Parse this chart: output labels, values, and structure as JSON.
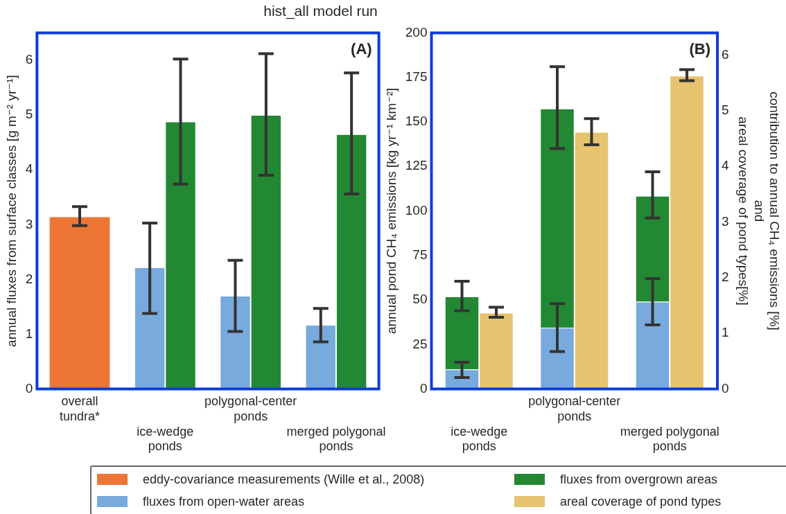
{
  "chart_data": [
    {
      "type": "bar",
      "title": "hist_all model run",
      "ylabel": "annual fluxes from surface classes [g m⁻² yr⁻¹]",
      "categories": [
        "overall tundra*",
        "ice-wedge ponds",
        "polygonal-center ponds",
        "merged polygonal ponds"
      ],
      "series": [
        {
          "name": "eddy-covariance measurements (Wille et al., 2008)",
          "color": "#ed7634",
          "values": [
            3.15,
            null,
            null,
            null
          ],
          "errors": [
            [
              2.98,
              3.33
            ],
            null,
            null,
            null
          ]
        },
        {
          "name": "fluxes from open-water areas",
          "color": "#79aadd",
          "values": [
            null,
            2.22,
            1.7,
            1.17
          ],
          "errors": [
            null,
            [
              1.38,
              3.03
            ],
            [
              1.05,
              2.35
            ],
            [
              0.86,
              1.47
            ]
          ]
        },
        {
          "name": "fluxes from overgrown areas",
          "color": "#238833",
          "values": [
            null,
            4.88,
            5.0,
            4.65
          ],
          "errors": [
            null,
            [
              3.74,
              6.02
            ],
            [
              3.9,
              6.12
            ],
            [
              3.56,
              5.77
            ]
          ]
        }
      ],
      "ylim": [
        0,
        6.5
      ],
      "yticks": [
        0,
        1,
        2,
        3,
        4,
        5,
        6
      ],
      "legend": "bottom",
      "annotations": [
        "(A)"
      ]
    },
    {
      "type": "bar",
      "ylabel": "annual pond CH₄ emissions [kg yr⁻¹ km⁻²]",
      "y2label": "contribution to annual CH₄ emissions [%]\nand\nareal coverage of pond types[%]",
      "categories": [
        "ice-wedge ponds",
        "polygonal-center ponds",
        "merged polygonal ponds"
      ],
      "stacked": true,
      "series": [
        {
          "color": "#79aadd",
          "values": [
            11,
            34.5,
            49
          ],
          "errors": [
            [
              6.5,
              15
            ],
            [
              21,
              48
            ],
            [
              36,
              62
            ]
          ]
        },
        {
          "color": "#238833",
          "values": [
            41,
            123,
            59.5
          ],
          "errors": [
            [
              44,
              60.5
            ],
            [
              135,
              181
            ],
            [
              96,
              122
            ]
          ]
        },
        {
          "name": "areal coverage of pond types",
          "color": "#e6c36e",
          "axis": "y2",
          "values": [
            1.37,
            4.62,
            5.63
          ],
          "errors": [
            [
              1.29,
              1.47
            ],
            [
              4.39,
              4.86
            ],
            [
              5.54,
              5.74
            ]
          ]
        }
      ],
      "ylim": [
        0,
        200
      ],
      "yticks": [
        0,
        25,
        50,
        75,
        100,
        125,
        150,
        175,
        200
      ],
      "y2lim": [
        0,
        6.4
      ],
      "y2ticks": [
        0,
        1,
        2,
        3,
        4,
        5,
        6
      ],
      "legend": "bottom",
      "annotations": [
        "(B)"
      ]
    }
  ]
}
